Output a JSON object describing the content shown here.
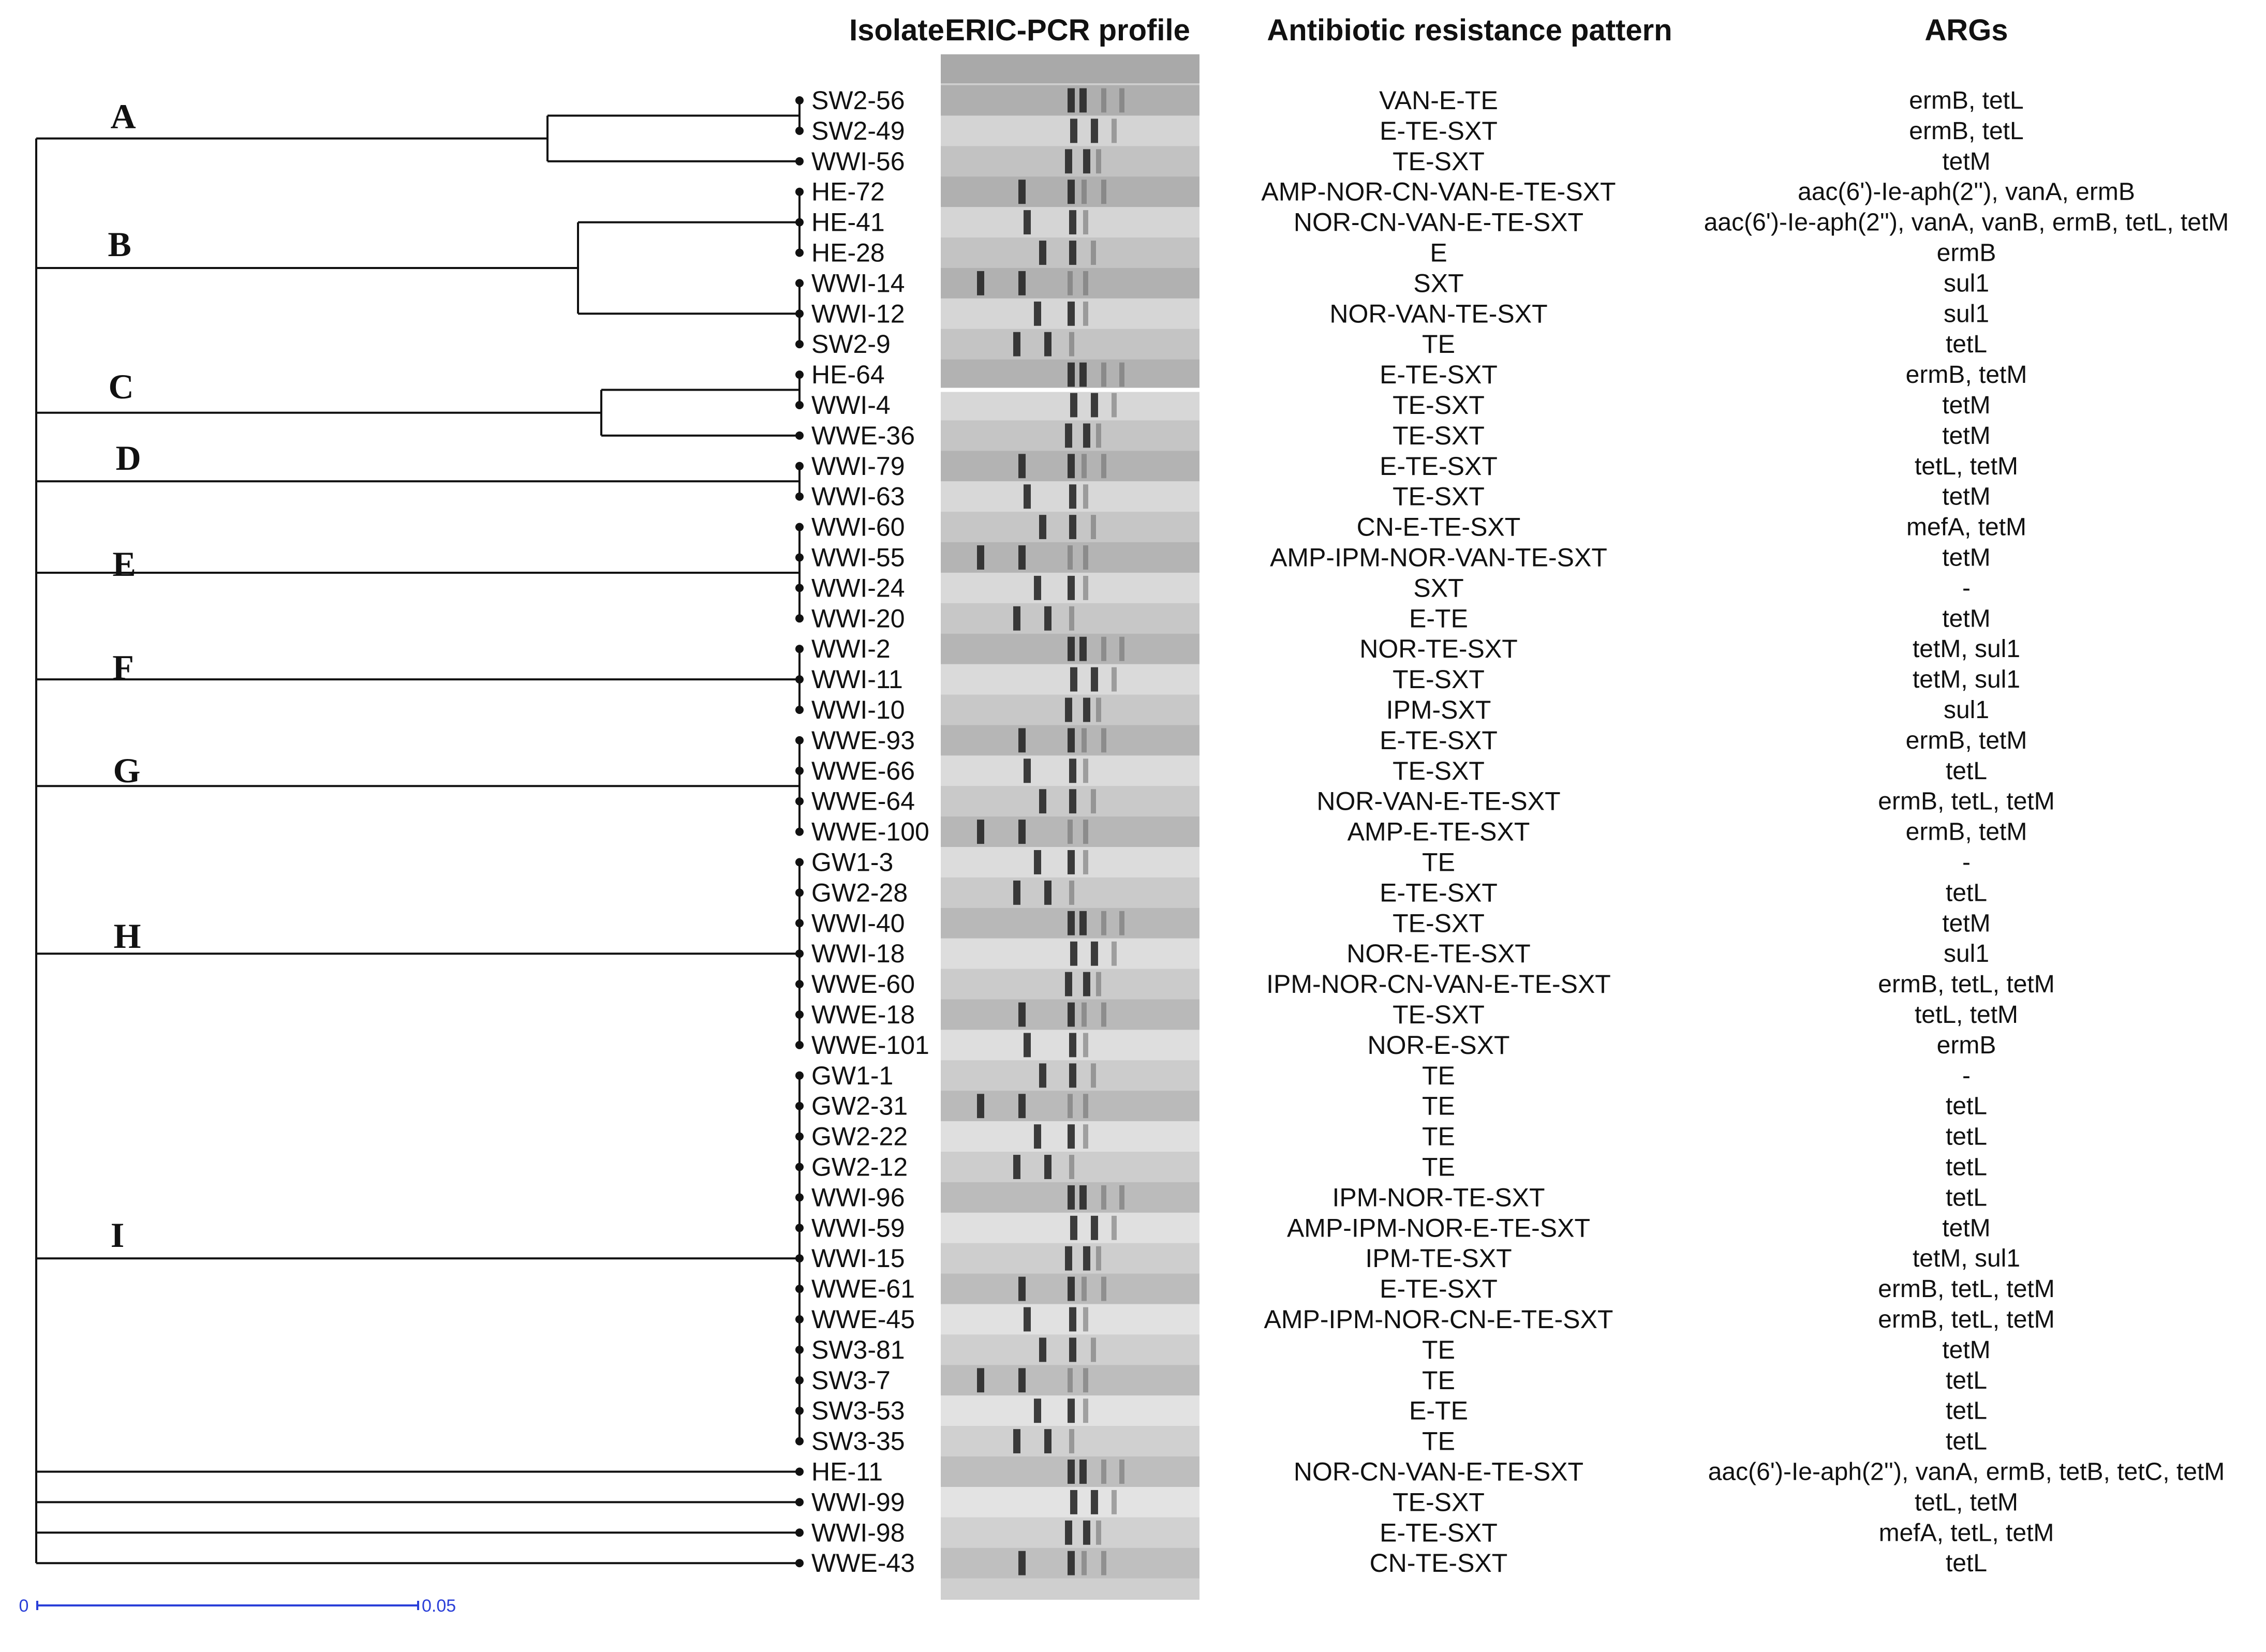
{
  "headers": {
    "isolate": "Isolate",
    "profile": "ERIC-PCR profile",
    "pattern": "Antibiotic resistance pattern",
    "args": "ARGs"
  },
  "rows": [
    {
      "isolate": "SW2-56",
      "pattern": "VAN-E-TE",
      "args": "ermB, tetL"
    },
    {
      "isolate": "SW2-49",
      "pattern": "E-TE-SXT",
      "args": "ermB, tetL"
    },
    {
      "isolate": "WWI-56",
      "pattern": "TE-SXT",
      "args": "tetM"
    },
    {
      "isolate": "HE-72",
      "pattern": "AMP-NOR-CN-VAN-E-TE-SXT",
      "args": "aac(6')-Ie-aph(2''), vanA, ermB"
    },
    {
      "isolate": "HE-41",
      "pattern": "NOR-CN-VAN-E-TE-SXT",
      "args": "aac(6')-Ie-aph(2''), vanA, vanB, ermB, tetL, tetM"
    },
    {
      "isolate": "HE-28",
      "pattern": "E",
      "args": "ermB"
    },
    {
      "isolate": "WWI-14",
      "pattern": "SXT",
      "args": "sul1"
    },
    {
      "isolate": "WWI-12",
      "pattern": "NOR-VAN-TE-SXT",
      "args": "sul1"
    },
    {
      "isolate": "SW2-9",
      "pattern": "TE",
      "args": "tetL"
    },
    {
      "isolate": "HE-64",
      "pattern": "E-TE-SXT",
      "args": "ermB, tetM"
    },
    {
      "isolate": "WWI-4",
      "pattern": "TE-SXT",
      "args": "tetM"
    },
    {
      "isolate": "WWE-36",
      "pattern": "TE-SXT",
      "args": "tetM"
    },
    {
      "isolate": "WWI-79",
      "pattern": "E-TE-SXT",
      "args": "tetL, tetM"
    },
    {
      "isolate": "WWI-63",
      "pattern": "TE-SXT",
      "args": "tetM"
    },
    {
      "isolate": "WWI-60",
      "pattern": "CN-E-TE-SXT",
      "args": "mefA, tetM"
    },
    {
      "isolate": "WWI-55",
      "pattern": "AMP-IPM-NOR-VAN-TE-SXT",
      "args": "tetM"
    },
    {
      "isolate": "WWI-24",
      "pattern": "SXT",
      "args": "-"
    },
    {
      "isolate": "WWI-20",
      "pattern": "E-TE",
      "args": "tetM"
    },
    {
      "isolate": "WWI-2",
      "pattern": "NOR-TE-SXT",
      "args": "tetM, sul1"
    },
    {
      "isolate": "WWI-11",
      "pattern": "TE-SXT",
      "args": "tetM, sul1"
    },
    {
      "isolate": "WWI-10",
      "pattern": "IPM-SXT",
      "args": "sul1"
    },
    {
      "isolate": "WWE-93",
      "pattern": "E-TE-SXT",
      "args": "ermB, tetM"
    },
    {
      "isolate": "WWE-66",
      "pattern": "TE-SXT",
      "args": "tetL"
    },
    {
      "isolate": "WWE-64",
      "pattern": "NOR-VAN-E-TE-SXT",
      "args": "ermB, tetL, tetM"
    },
    {
      "isolate": "WWE-100",
      "pattern": "AMP-E-TE-SXT",
      "args": "ermB, tetM"
    },
    {
      "isolate": "GW1-3",
      "pattern": "TE",
      "args": "-"
    },
    {
      "isolate": "GW2-28",
      "pattern": "E-TE-SXT",
      "args": "tetL"
    },
    {
      "isolate": "WWI-40",
      "pattern": "TE-SXT",
      "args": "tetM"
    },
    {
      "isolate": "WWI-18",
      "pattern": "NOR-E-TE-SXT",
      "args": "sul1"
    },
    {
      "isolate": "WWE-60",
      "pattern": "IPM-NOR-CN-VAN-E-TE-SXT",
      "args": "ermB, tetL, tetM"
    },
    {
      "isolate": "WWE-18",
      "pattern": "TE-SXT",
      "args": "tetL, tetM"
    },
    {
      "isolate": "WWE-101",
      "pattern": "NOR-E-SXT",
      "args": "ermB"
    },
    {
      "isolate": "GW1-1",
      "pattern": "TE",
      "args": "-"
    },
    {
      "isolate": "GW2-31",
      "pattern": "TE",
      "args": "tetL"
    },
    {
      "isolate": "GW2-22",
      "pattern": "TE",
      "args": "tetL"
    },
    {
      "isolate": "GW2-12",
      "pattern": "TE",
      "args": "tetL"
    },
    {
      "isolate": "WWI-96",
      "pattern": "IPM-NOR-TE-SXT",
      "args": "tetL"
    },
    {
      "isolate": "WWI-59",
      "pattern": "AMP-IPM-NOR-E-TE-SXT",
      "args": "tetM"
    },
    {
      "isolate": "WWI-15",
      "pattern": "IPM-TE-SXT",
      "args": "tetM, sul1"
    },
    {
      "isolate": "WWE-61",
      "pattern": "E-TE-SXT",
      "args": "ermB, tetL, tetM"
    },
    {
      "isolate": "WWE-45",
      "pattern": "AMP-IPM-NOR-CN-E-TE-SXT",
      "args": "ermB, tetL, tetM"
    },
    {
      "isolate": "SW3-81",
      "pattern": "TE",
      "args": "tetM"
    },
    {
      "isolate": "SW3-7",
      "pattern": "TE",
      "args": "tetL"
    },
    {
      "isolate": "SW3-53",
      "pattern": "E-TE",
      "args": "tetL"
    },
    {
      "isolate": "SW3-35",
      "pattern": "TE",
      "args": "tetL"
    },
    {
      "isolate": "HE-11",
      "pattern": "NOR-CN-VAN-E-TE-SXT",
      "args": "aac(6')-Ie-aph(2''), vanA, ermB, tetB, tetC, tetM"
    },
    {
      "isolate": "WWI-99",
      "pattern": "TE-SXT",
      "args": "tetL, tetM"
    },
    {
      "isolate": "WWI-98",
      "pattern": "E-TE-SXT",
      "args": "mefA, tetL, tetM"
    },
    {
      "isolate": "WWE-43",
      "pattern": "CN-TE-SXT",
      "args": "tetL"
    }
  ],
  "clusters": [
    "A",
    "B",
    "C",
    "D",
    "E",
    "F",
    "G",
    "H",
    "I"
  ],
  "scale_bar": {
    "start_label": "0",
    "end_label": "0.05",
    "value": 0.05
  },
  "colors": {
    "scale_bar": "#2a3fd8",
    "lines": "#111111"
  }
}
